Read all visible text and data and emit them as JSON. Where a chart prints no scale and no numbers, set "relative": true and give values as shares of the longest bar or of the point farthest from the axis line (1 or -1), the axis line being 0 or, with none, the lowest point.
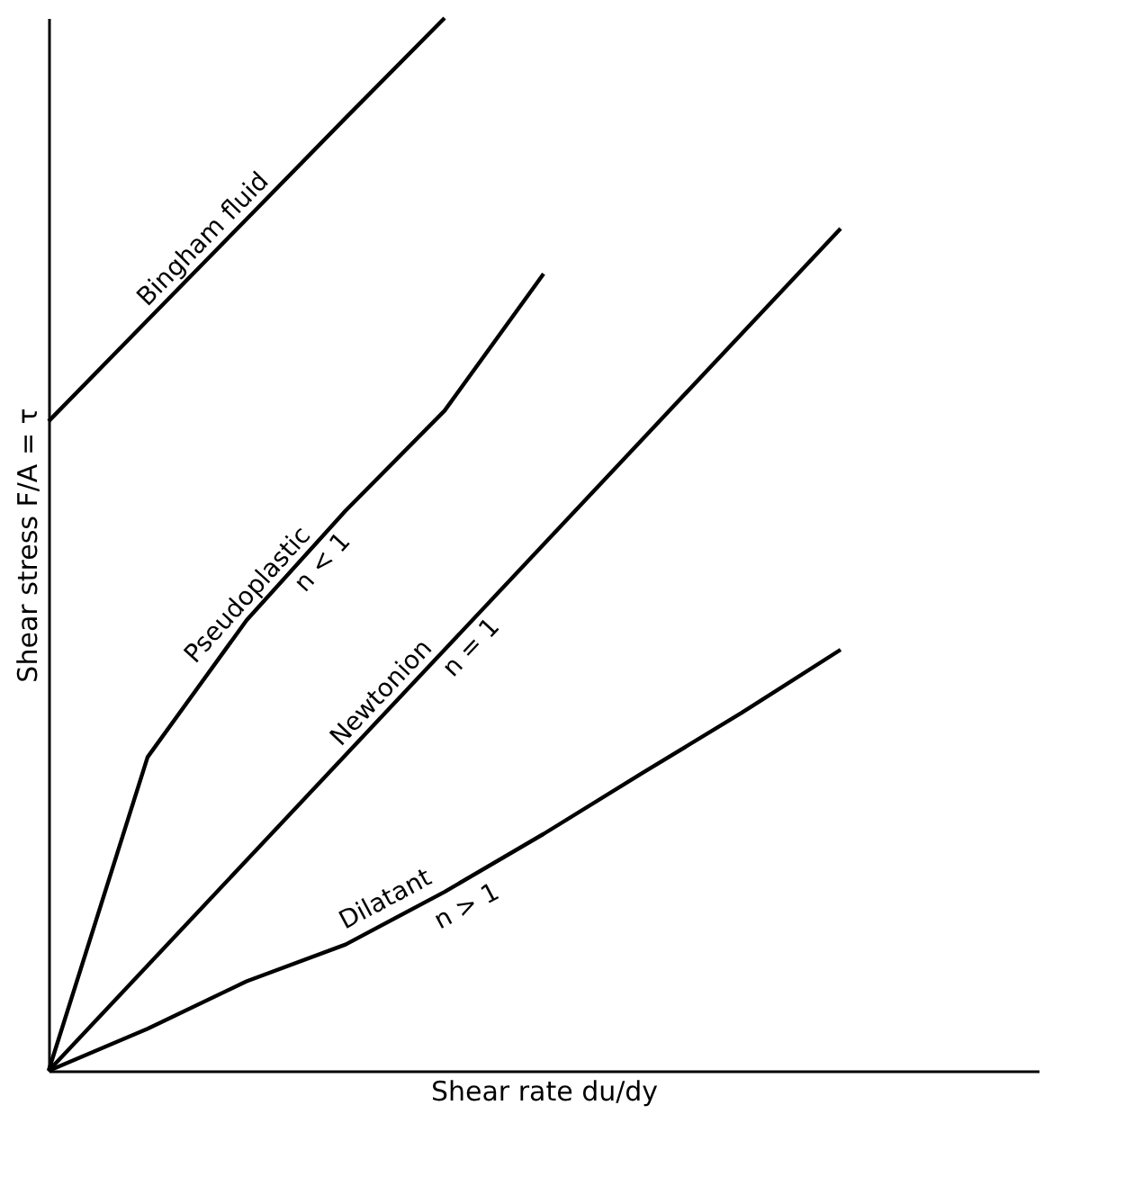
{
  "chart_data": {
    "type": "line",
    "relative": true,
    "xlabel": "Shear rate  du/dy",
    "ylabel": "Shear stress  F/A = τ",
    "tick_labels": false,
    "line_style": "solid",
    "categories": [
      null,
      null,
      null,
      null,
      null,
      null,
      null,
      null,
      null,
      null,
      null
    ],
    "series": [
      {
        "name": "Bingham fluid",
        "color": "#000000",
        "values": [
          0.617,
          0.713,
          0.809,
          0.905,
          1.0,
          null,
          null,
          null,
          null,
          null,
          null
        ]
      },
      {
        "name": "Pseudoplastic",
        "color": "#000000",
        "values": [
          0,
          0.298,
          0.428,
          0.532,
          0.627,
          0.757,
          null,
          null,
          null,
          null,
          null
        ]
      },
      {
        "name": "Newtonion",
        "color": "#000000",
        "values": [
          0,
          0.1,
          0.2,
          0.3,
          0.4,
          0.5,
          0.6,
          0.7,
          0.8,
          null,
          null
        ]
      },
      {
        "name": "Dilatant",
        "color": "#000000",
        "values": [
          0,
          0.04,
          0.085,
          0.12,
          0.17,
          0.225,
          0.283,
          0.34,
          0.4,
          null,
          null
        ]
      }
    ],
    "annotations": [
      "n < 1",
      "n = 1",
      "n > 1"
    ]
  }
}
